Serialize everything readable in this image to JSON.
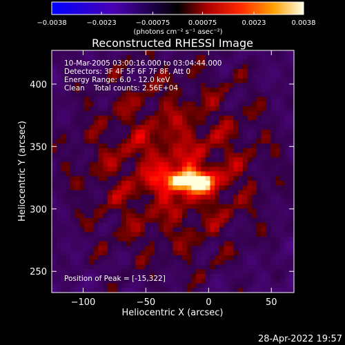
{
  "chart_data": {
    "type": "heatmap",
    "title": "Reconstructed RHESSI Image",
    "xlabel": "Heliocentric X (arcsec)",
    "ylabel": "Heliocentric Y (arcsec)",
    "x_range": [
      -125,
      68
    ],
    "y_range": [
      233,
      427
    ],
    "x_ticks": [
      -100,
      -50,
      0,
      50
    ],
    "y_ticks": [
      250,
      300,
      350,
      400
    ],
    "x_tick_labels": [
      "−100",
      "−50",
      "0",
      "50"
    ],
    "y_tick_labels": [
      "250",
      "300",
      "350",
      "400"
    ],
    "colorbar": {
      "range": [
        -0.0038,
        0.0038
      ],
      "ticks": [
        -0.0038,
        -0.0023,
        -0.00075,
        0.00075,
        0.0023,
        0.0038
      ],
      "tick_labels": [
        "−0.0038",
        "−0.0023",
        "−0.00075",
        "0.00075",
        "0.0023",
        "0.0038"
      ],
      "units_label": "(photons cm⁻² s⁻¹ asec⁻²)"
    },
    "peak": {
      "x": -15,
      "y": 322,
      "value": 0.0038
    },
    "annotations": [
      "10-Mar-2005 03:00:16.000 to 03:04:44.000",
      "Detectors: 3F 4F 5F 6F 7F 8F, Att 0",
      "Energy Range: 6.0 - 12.0 keV",
      "Clean    Total counts: 2.56E+04"
    ],
    "peak_label": "Position of Peak = [-15,322]",
    "grid": false
  },
  "footer": {
    "timestamp": "28-Apr-2022 19:57"
  },
  "colors": {
    "background": "#000000",
    "text": "#ffffff"
  }
}
